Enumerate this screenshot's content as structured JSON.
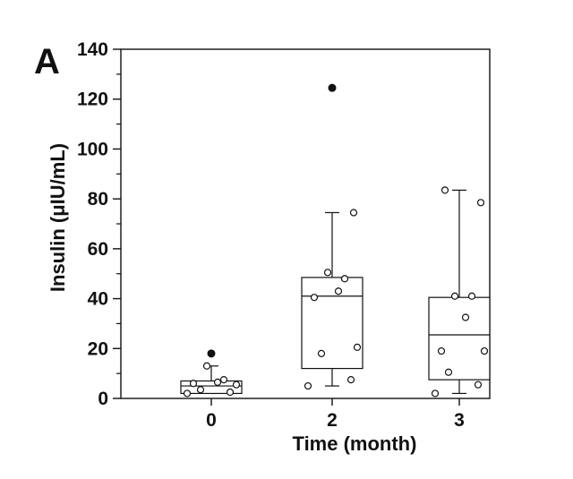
{
  "panel_label": "A",
  "chart_data": {
    "type": "box",
    "title": "",
    "xlabel": "Time (month)",
    "ylabel": "Insulin (μIU/mL)",
    "ylim": [
      0,
      140
    ],
    "yticks": [
      0,
      20,
      40,
      60,
      80,
      100,
      120,
      140
    ],
    "categories": [
      "0",
      "2",
      "3"
    ],
    "boxes": [
      {
        "category": "0",
        "whisker_low": 2,
        "q1": 2,
        "median": 5,
        "q3": 7,
        "whisker_high": 13,
        "outliers": [
          18
        ],
        "points": [
          2,
          2.5,
          3.5,
          5.5,
          6,
          6.5,
          7.5,
          13
        ]
      },
      {
        "category": "2",
        "whisker_low": 5,
        "q1": 12,
        "median": 41,
        "q3": 48.5,
        "whisker_high": 74.5,
        "outliers": [
          124.5
        ],
        "points": [
          5,
          7.5,
          18,
          20.5,
          40.5,
          43,
          48,
          50.5,
          74.5
        ]
      },
      {
        "category": "3",
        "whisker_low": 2,
        "q1": 7.5,
        "median": 25.5,
        "q3": 40.5,
        "whisker_high": 83.5,
        "outliers": [],
        "points": [
          2,
          5.5,
          10.5,
          19,
          19,
          32.5,
          41,
          41,
          78.5,
          83.5
        ]
      }
    ],
    "grid": false,
    "legend": "none"
  }
}
